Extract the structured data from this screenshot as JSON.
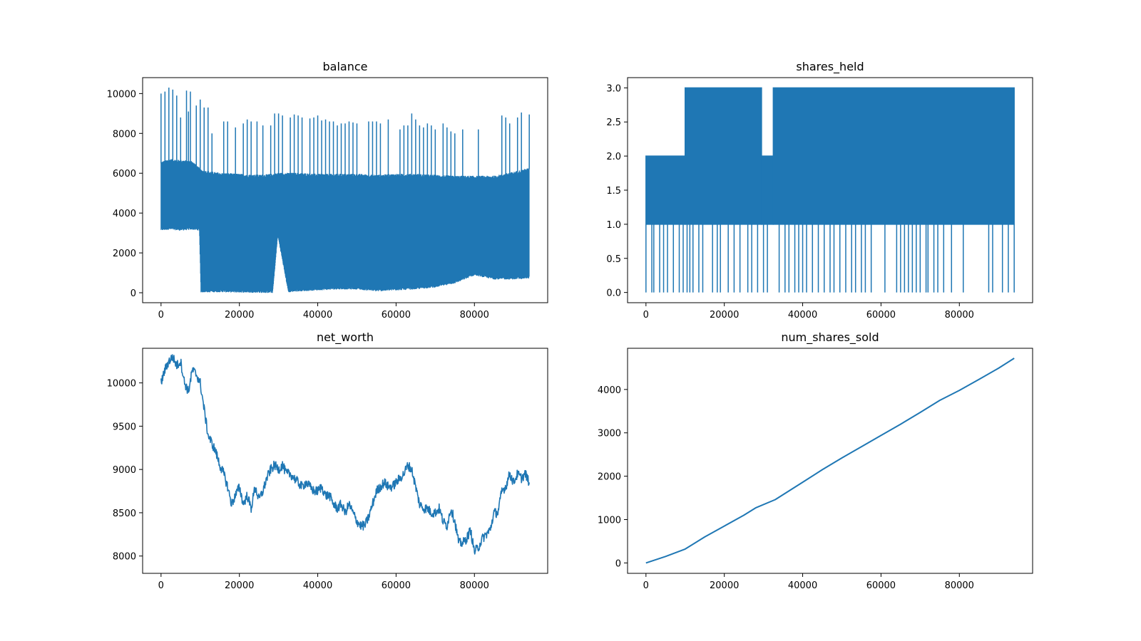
{
  "figure": {
    "background": "#ffffff",
    "line_color": "#1f77b4"
  },
  "chart_data": [
    {
      "type": "line",
      "title": "balance",
      "xlabel": "",
      "ylabel": "",
      "xlim": [
        -4700,
        98700
      ],
      "ylim": [
        -500,
        10800
      ],
      "xticks": [
        0,
        20000,
        40000,
        60000,
        80000
      ],
      "yticks": [
        0,
        2000,
        4000,
        6000,
        8000,
        10000
      ],
      "grid": false,
      "series": [
        {
          "style": "oscillating-band",
          "color": "#1f77b4",
          "x": [
            0,
            2000,
            5000,
            8000,
            9800,
            10200,
            15000,
            20000,
            25000,
            28500,
            29800,
            32500,
            35000,
            40000,
            45000,
            50000,
            55000,
            60000,
            65000,
            70000,
            75000,
            80000,
            85000,
            90000,
            94000
          ],
          "upper": [
            6500,
            6650,
            6600,
            6550,
            6200,
            6100,
            5950,
            5900,
            5850,
            5900,
            5950,
            5950,
            5950,
            5900,
            5900,
            5900,
            5850,
            5900,
            5900,
            5850,
            5800,
            5800,
            5800,
            6000,
            6200
          ],
          "lower": [
            3150,
            3200,
            3150,
            3200,
            3150,
            50,
            60,
            40,
            30,
            20,
            2900,
            50,
            100,
            150,
            200,
            200,
            100,
            150,
            200,
            300,
            500,
            900,
            700,
            700,
            750
          ],
          "spikes_x": [
            0,
            1000,
            2000,
            3000,
            4000,
            5000,
            6500,
            7000,
            7500,
            9000,
            10000,
            11000,
            12000,
            13000,
            16000,
            17000,
            19000,
            21000,
            22000,
            23000,
            24500,
            26000,
            28000,
            29000,
            30000,
            31000,
            33000,
            34000,
            35000,
            36000,
            38000,
            39000,
            40000,
            41000,
            42000,
            43000,
            44000,
            45000,
            46000,
            47000,
            48000,
            49000,
            50000,
            53000,
            54000,
            55000,
            56000,
            58000,
            61000,
            62000,
            63000,
            64000,
            65000,
            66000,
            67000,
            68000,
            69000,
            70000,
            72000,
            73000,
            74000,
            75000,
            77000,
            81000,
            87000,
            88000,
            89000,
            91000,
            92000,
            94000
          ],
          "spikes_y": [
            10000,
            10100,
            10300,
            10200,
            9900,
            8800,
            10150,
            9100,
            10100,
            9400,
            9700,
            9300,
            9300,
            8000,
            8600,
            8600,
            8300,
            8500,
            8700,
            8600,
            8600,
            8400,
            8400,
            9000,
            9000,
            8900,
            8800,
            8950,
            8900,
            8800,
            8750,
            8800,
            8900,
            8650,
            8700,
            8600,
            8600,
            8400,
            8500,
            8500,
            8600,
            8550,
            8500,
            8600,
            8600,
            8600,
            8500,
            8700,
            8200,
            8400,
            8400,
            9000,
            8700,
            8400,
            8300,
            8500,
            8400,
            8200,
            8500,
            8300,
            8100,
            8000,
            8200,
            8200,
            8900,
            8800,
            8500,
            8800,
            9050,
            8950
          ]
        }
      ]
    },
    {
      "type": "line",
      "title": "shares_held",
      "xlabel": "",
      "ylabel": "",
      "xlim": [
        -4700,
        98700
      ],
      "ylim": [
        -0.15,
        3.15
      ],
      "xticks": [
        0,
        20000,
        40000,
        60000,
        80000
      ],
      "yticks": [
        0.0,
        0.5,
        1.0,
        1.5,
        2.0,
        2.5,
        3.0
      ],
      "ytick_labels": [
        "0.0",
        "0.5",
        "1.0",
        "1.5",
        "2.0",
        "2.5",
        "3.0"
      ],
      "grid": false,
      "series": [
        {
          "style": "step-oscillation",
          "color": "#1f77b4",
          "segments": [
            {
              "x0": 0,
              "x1": 10000,
              "low": 1,
              "high": 2
            },
            {
              "x0": 10000,
              "x1": 29500,
              "low": 1,
              "high": 3
            },
            {
              "x0": 29500,
              "x1": 32500,
              "low": 1,
              "high": 2
            },
            {
              "x0": 32500,
              "x1": 94000,
              "low": 1,
              "high": 3
            }
          ],
          "zero_drops_x": [
            0,
            1500,
            2000,
            3500,
            4500,
            5500,
            7000,
            8500,
            9500,
            10500,
            11200,
            12000,
            13500,
            14500,
            17000,
            18200,
            19000,
            21000,
            22500,
            24000,
            26000,
            27000,
            28500,
            30000,
            31000,
            34000,
            35500,
            36500,
            38000,
            39000,
            40000,
            41000,
            42500,
            44000,
            45500,
            47000,
            48000,
            49500,
            51000,
            52500,
            53500,
            55000,
            56000,
            57500,
            61000,
            64000,
            65000,
            66000,
            67000,
            68000,
            69000,
            70000,
            71500,
            72000,
            73500,
            74500,
            76000,
            78000,
            81000,
            87500,
            88500,
            91000,
            92500,
            94000
          ]
        }
      ]
    },
    {
      "type": "line",
      "title": "net_worth",
      "xlabel": "",
      "ylabel": "",
      "xlim": [
        -4700,
        98700
      ],
      "ylim": [
        7800,
        10400
      ],
      "xticks": [
        0,
        20000,
        40000,
        60000,
        80000
      ],
      "yticks": [
        8000,
        8500,
        9000,
        9500,
        10000
      ],
      "grid": false,
      "series": [
        {
          "color": "#1f77b4",
          "x": [
            0,
            1000,
            2000,
            3000,
            4000,
            5000,
            6000,
            7000,
            8000,
            9000,
            10000,
            11000,
            12000,
            13000,
            14000,
            15000,
            16000,
            17000,
            18000,
            19000,
            20000,
            21000,
            22000,
            23000,
            24000,
            25000,
            26000,
            27000,
            28000,
            29000,
            30000,
            31000,
            32000,
            33000,
            34000,
            35000,
            36000,
            37000,
            38000,
            39000,
            40000,
            41000,
            42000,
            43000,
            44000,
            45000,
            46000,
            47000,
            48000,
            49000,
            50000,
            51000,
            52000,
            53000,
            54000,
            55000,
            56000,
            57000,
            58000,
            59000,
            60000,
            61000,
            62000,
            63000,
            64000,
            65000,
            66000,
            67000,
            68000,
            69000,
            70000,
            71000,
            72000,
            73000,
            74000,
            75000,
            76000,
            77000,
            78000,
            79000,
            80000,
            81000,
            82000,
            83000,
            84000,
            85000,
            86000,
            87000,
            88000,
            89000,
            90000,
            91000,
            92000,
            93000,
            94000
          ],
          "values": [
            10000,
            10150,
            10250,
            10300,
            10200,
            10250,
            10000,
            9900,
            10150,
            10100,
            10000,
            9700,
            9400,
            9300,
            9200,
            9050,
            8950,
            8800,
            8600,
            8700,
            8800,
            8600,
            8700,
            8550,
            8800,
            8650,
            8750,
            8900,
            9000,
            9050,
            9000,
            9050,
            8950,
            8950,
            8900,
            8850,
            8800,
            8850,
            8800,
            8750,
            8750,
            8800,
            8700,
            8700,
            8600,
            8550,
            8600,
            8500,
            8600,
            8500,
            8400,
            8350,
            8350,
            8450,
            8600,
            8750,
            8800,
            8850,
            8800,
            8800,
            8850,
            8900,
            8950,
            9050,
            9000,
            8800,
            8600,
            8550,
            8550,
            8500,
            8500,
            8550,
            8400,
            8350,
            8550,
            8400,
            8150,
            8150,
            8200,
            8300,
            8050,
            8100,
            8200,
            8250,
            8300,
            8500,
            8500,
            8750,
            8800,
            8950,
            8850,
            8950,
            8900,
            8950,
            8850
          ]
        }
      ]
    },
    {
      "type": "line",
      "title": "num_shares_sold",
      "xlabel": "",
      "ylabel": "",
      "xlim": [
        -4700,
        98700
      ],
      "ylim": [
        -240,
        4950
      ],
      "xticks": [
        0,
        20000,
        40000,
        60000,
        80000
      ],
      "yticks": [
        0,
        1000,
        2000,
        3000,
        4000
      ],
      "grid": false,
      "series": [
        {
          "color": "#1f77b4",
          "x": [
            0,
            5000,
            10000,
            15000,
            20000,
            25000,
            28000,
            33000,
            40000,
            45000,
            50000,
            55000,
            60000,
            65000,
            70000,
            75000,
            80000,
            85000,
            90000,
            94000
          ],
          "values": [
            0,
            150,
            320,
            600,
            850,
            1100,
            1270,
            1460,
            1860,
            2150,
            2420,
            2680,
            2940,
            3200,
            3470,
            3750,
            3980,
            4230,
            4490,
            4720
          ]
        }
      ]
    }
  ]
}
